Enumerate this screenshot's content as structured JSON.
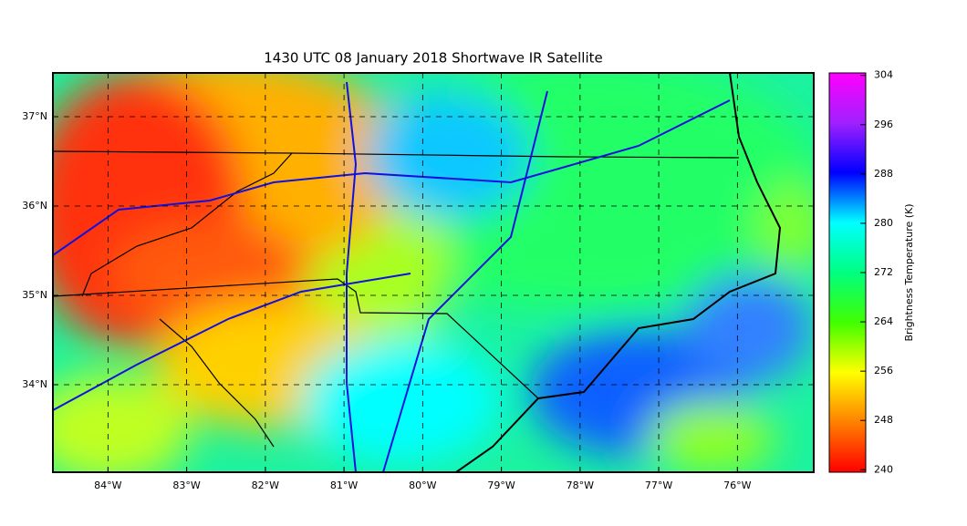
{
  "title": "1430 UTC 08 January 2018 Shortwave IR Satellite",
  "map": {
    "xlim": [
      -84.7,
      -75.03
    ],
    "ylim": [
      33.02,
      37.49
    ],
    "xticks": [
      {
        "value": -84,
        "label": "84°W"
      },
      {
        "value": -83,
        "label": "83°W"
      },
      {
        "value": -82,
        "label": "82°W"
      },
      {
        "value": -81,
        "label": "81°W"
      },
      {
        "value": -80,
        "label": "80°W"
      },
      {
        "value": -79,
        "label": "79°W"
      },
      {
        "value": -78,
        "label": "78°W"
      },
      {
        "value": -77,
        "label": "77°W"
      },
      {
        "value": -76,
        "label": "76°W"
      }
    ],
    "yticks": [
      {
        "value": 34,
        "label": "34°N"
      },
      {
        "value": 35,
        "label": "35°N"
      },
      {
        "value": 36,
        "label": "36°N"
      },
      {
        "value": 37,
        "label": "37°N"
      }
    ]
  },
  "colorbar": {
    "label": "Brightness Temperature (K)",
    "lim": [
      239.6,
      304.4
    ],
    "ticks": [
      240,
      248,
      256,
      264,
      272,
      280,
      288,
      296,
      304
    ]
  }
}
